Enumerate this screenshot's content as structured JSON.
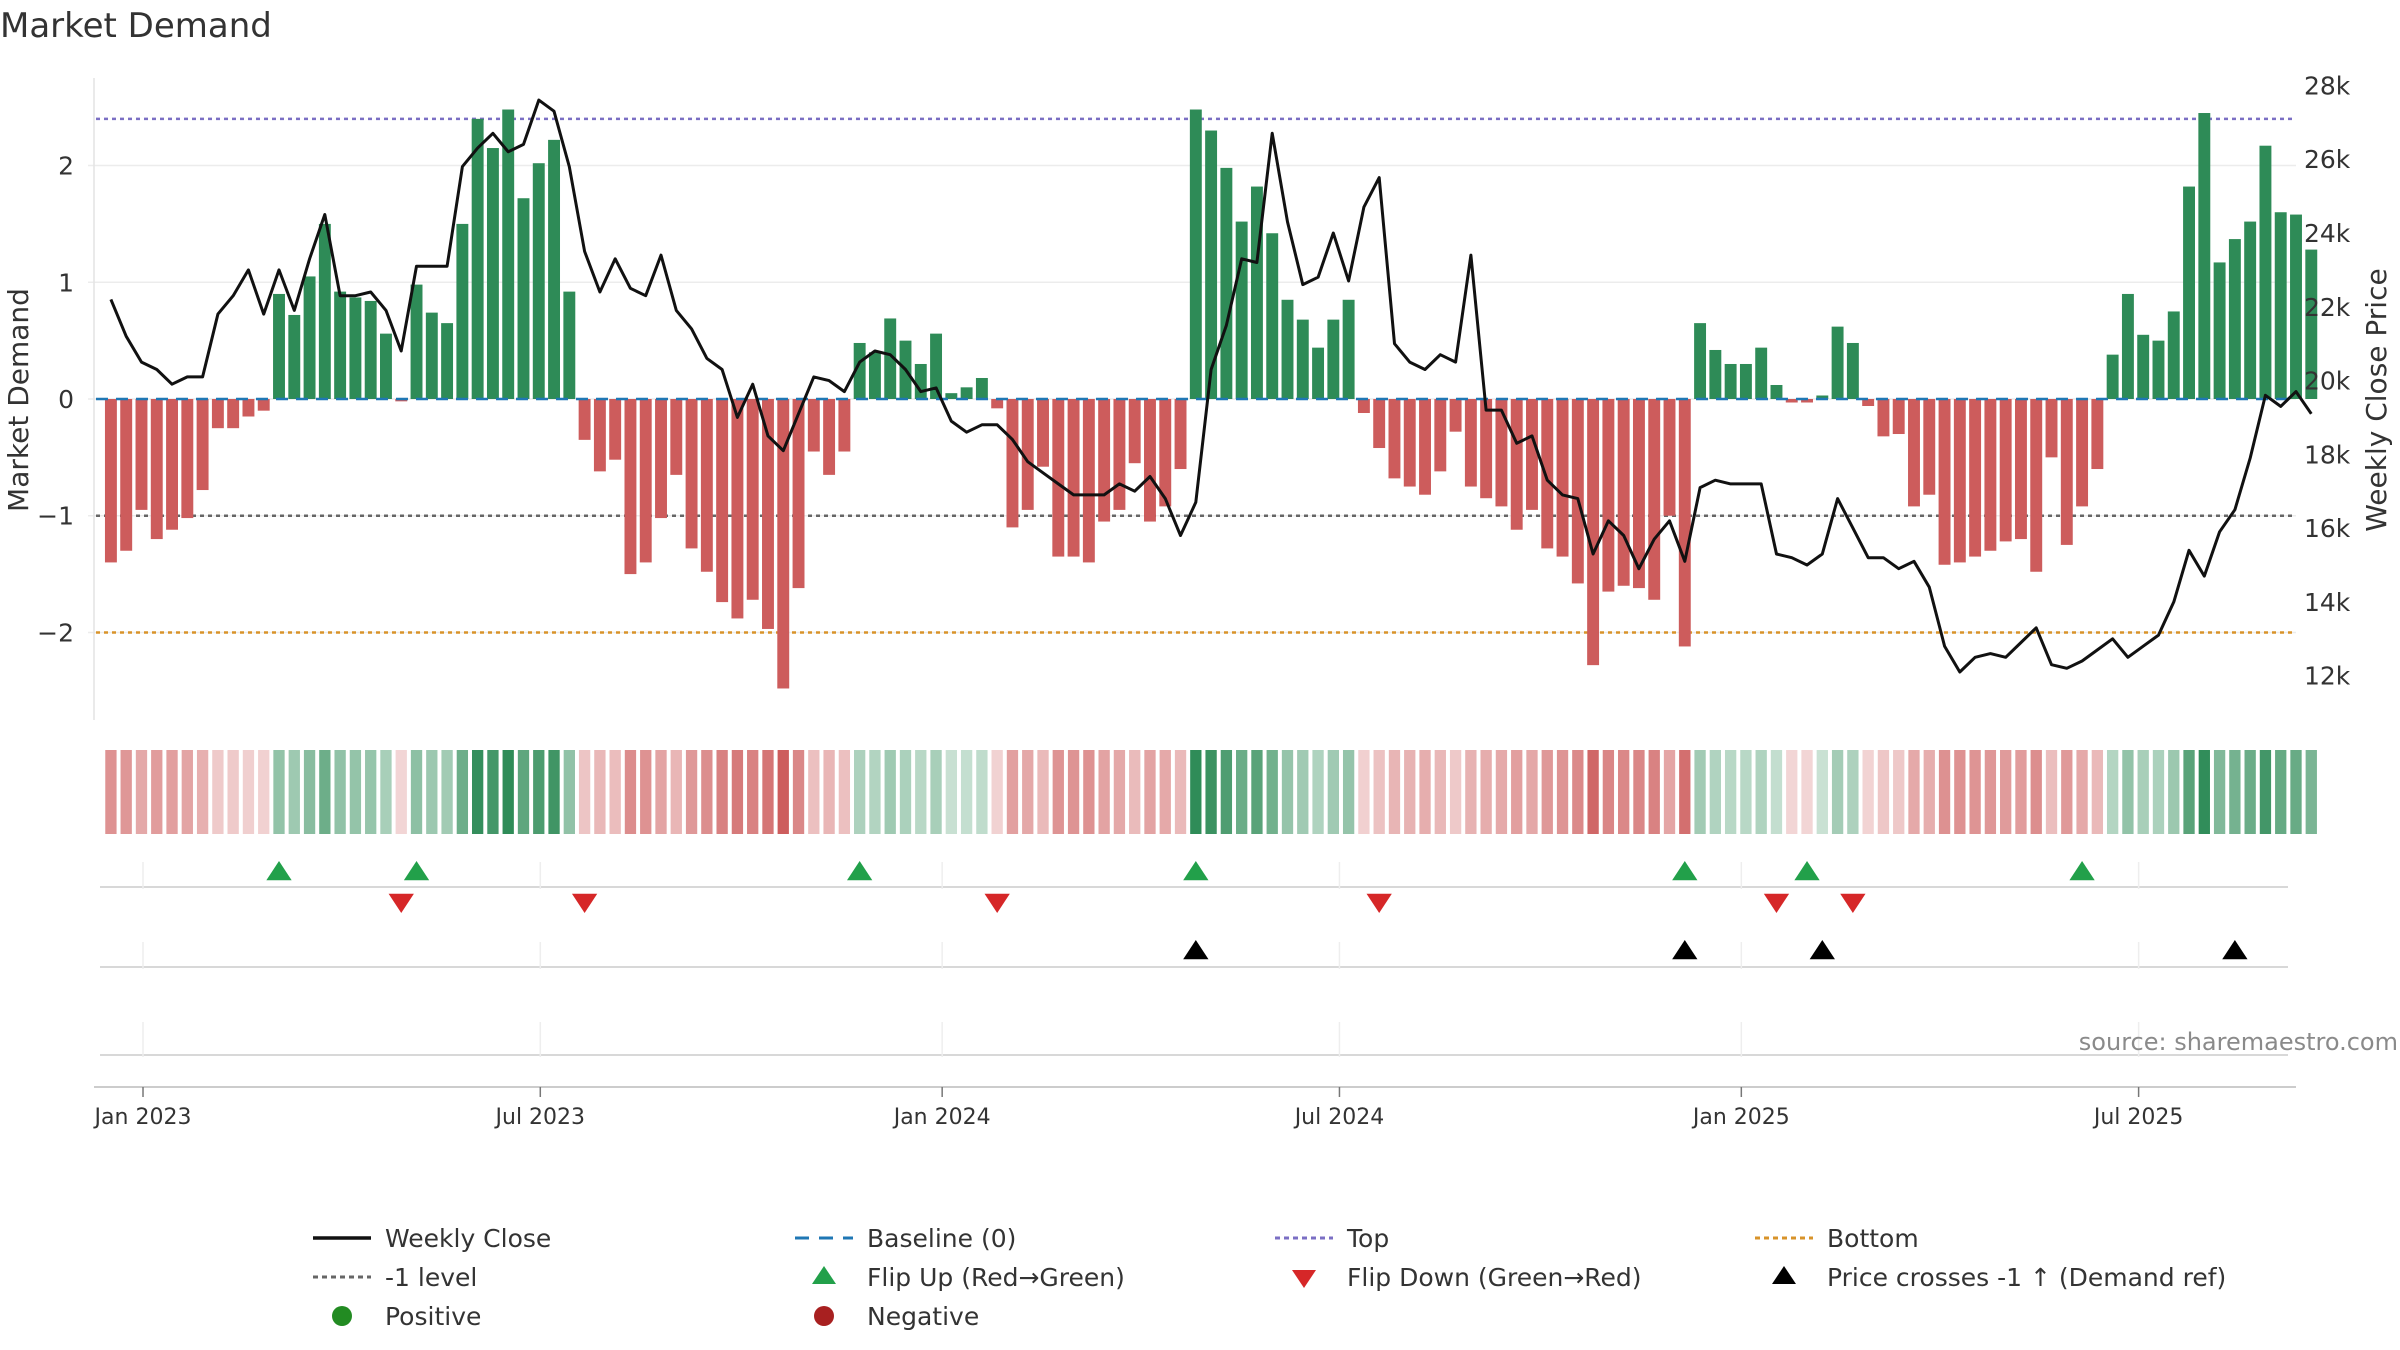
{
  "chart_data": {
    "type": "bar",
    "title": "Market Demand",
    "ylabel": "Market Demand",
    "y2label": "Weekly Close Price",
    "ylim": [
      -2.75,
      2.75
    ],
    "y2lim": [
      10800,
      28200
    ],
    "y_ticks": [
      {
        "value": 2,
        "label": "2"
      },
      {
        "value": 1,
        "label": "1"
      },
      {
        "value": 0,
        "label": "0"
      },
      {
        "value": -1,
        "label": "−1"
      },
      {
        "value": -2,
        "label": "−2"
      }
    ],
    "y2_ticks": [
      {
        "value": 28000,
        "label": "28k"
      },
      {
        "value": 26000,
        "label": "26k"
      },
      {
        "value": 24000,
        "label": "24k"
      },
      {
        "value": 22000,
        "label": "22k"
      },
      {
        "value": 20000,
        "label": "20k"
      },
      {
        "value": 18000,
        "label": "18k"
      },
      {
        "value": 16000,
        "label": "16k"
      },
      {
        "value": 14000,
        "label": "14k"
      },
      {
        "value": 12000,
        "label": "12k"
      }
    ],
    "x_range_weeks": [
      -1.5,
      143
    ],
    "x_ticks": [
      {
        "week": 2.1,
        "label": "Jan 2023"
      },
      {
        "week": 28.1,
        "label": "Jul 2023"
      },
      {
        "week": 54.4,
        "label": "Jan 2024"
      },
      {
        "week": 80.4,
        "label": "Jul 2024"
      },
      {
        "week": 106.7,
        "label": "Jan 2025"
      },
      {
        "week": 132.7,
        "label": "Jul 2025"
      }
    ],
    "reference_lines": [
      {
        "name": "Top",
        "value": 2.4,
        "color": "#7b6fc4"
      },
      {
        "name": "-1 level",
        "value": -1,
        "color": "#666666"
      },
      {
        "name": "Bottom",
        "value": -2,
        "color": "#d8932a"
      }
    ],
    "demand": [
      -1.4,
      -1.3,
      -0.95,
      -1.2,
      -1.12,
      -1.02,
      -0.78,
      -0.25,
      -0.25,
      -0.15,
      -0.1,
      0.9,
      0.72,
      1.05,
      1.5,
      0.92,
      0.87,
      0.84,
      0.56,
      -0.02,
      0.98,
      0.74,
      0.65,
      1.5,
      2.4,
      2.15,
      2.48,
      1.72,
      2.02,
      2.22,
      0.92,
      -0.35,
      -0.62,
      -0.52,
      -1.5,
      -1.4,
      -1.02,
      -0.65,
      -1.28,
      -1.48,
      -1.74,
      -1.88,
      -1.72,
      -1.97,
      -2.48,
      -1.62,
      -0.45,
      -0.65,
      -0.45,
      0.48,
      0.4,
      0.69,
      0.5,
      0.3,
      0.56,
      0.05,
      0.1,
      0.18,
      -0.08,
      -1.1,
      -0.95,
      -0.58,
      -1.35,
      -1.35,
      -1.4,
      -1.05,
      -0.95,
      -0.55,
      -1.05,
      -0.92,
      -0.6,
      2.48,
      2.3,
      1.98,
      1.52,
      1.82,
      1.42,
      0.85,
      0.68,
      0.44,
      0.68,
      0.85,
      -0.12,
      -0.42,
      -0.68,
      -0.75,
      -0.82,
      -0.62,
      -0.28,
      -0.75,
      -0.85,
      -0.92,
      -1.12,
      -0.95,
      -1.28,
      -1.35,
      -1.58,
      -2.28,
      -1.65,
      -1.6,
      -1.62,
      -1.72,
      -1.0,
      -2.12,
      0.65,
      0.42,
      0.3,
      0.3,
      0.44,
      0.12,
      -0.03,
      -0.03,
      0.03,
      0.62,
      0.48,
      -0.06,
      -0.32,
      -0.3,
      -0.92,
      -0.82,
      -1.42,
      -1.4,
      -1.35,
      -1.3,
      -1.22,
      -1.2,
      -1.48,
      -0.5,
      -1.25,
      -0.92,
      -0.6,
      0.38,
      0.9,
      0.55,
      0.5,
      0.75,
      1.82,
      2.45,
      1.17,
      1.37,
      1.52,
      2.17,
      1.6,
      1.58,
      1.28
    ],
    "series": [
      {
        "name": "Weekly Close",
        "values": [
          22200,
          21200,
          20500,
          20300,
          19900,
          20100,
          20100,
          21800,
          22300,
          23000,
          21800,
          23000,
          21900,
          23300,
          24500,
          22300,
          22300,
          22400,
          21900,
          20800,
          23100,
          23100,
          23100,
          25800,
          26300,
          26700,
          26200,
          26400,
          27600,
          27300,
          25800,
          23500,
          22400,
          23300,
          22500,
          22300,
          23400,
          21900,
          21400,
          20600,
          20300,
          19000,
          19900,
          18500,
          18100,
          19100,
          20100,
          20000,
          19700,
          20500,
          20800,
          20700,
          20300,
          19700,
          19800,
          18900,
          18600,
          18800,
          18800,
          18400,
          17800,
          17500,
          17200,
          16900,
          16900,
          16900,
          17200,
          17000,
          17400,
          16800,
          15800,
          16700,
          20300,
          21500,
          23300,
          23200,
          26700,
          24300,
          22600,
          22800,
          24000,
          22700,
          24700,
          25500,
          21000,
          20500,
          20300,
          20700,
          20500,
          23400,
          19200,
          19200,
          18300,
          18500,
          17300,
          16900,
          16800,
          15300,
          16200,
          15800,
          14900,
          15700,
          16200,
          15100,
          17100,
          17300,
          17200,
          17200,
          17200,
          15300,
          15200,
          15000,
          15300,
          16800,
          16000,
          15200,
          15200,
          14900,
          15100,
          14400,
          12800,
          12100,
          12500,
          12600,
          12500,
          12900,
          13300,
          12300,
          12200,
          12400,
          12700,
          13000,
          12500,
          12800,
          13100,
          14000,
          15400,
          14700,
          15900,
          16500,
          17900,
          19600,
          19300,
          19700,
          19100
        ]
      }
    ],
    "flip_up_weeks": [
      11,
      20,
      49,
      71,
      103,
      111,
      129
    ],
    "flip_down_weeks": [
      19,
      31,
      58,
      83,
      109,
      114
    ],
    "cross_weeks": [
      71,
      103,
      112,
      139
    ],
    "source": "source: sharemaestro.com",
    "legend": [
      {
        "key": "close",
        "label": "Weekly Close"
      },
      {
        "key": "baseline",
        "label": "Baseline (0)"
      },
      {
        "key": "top",
        "label": "Top"
      },
      {
        "key": "bottom",
        "label": "Bottom"
      },
      {
        "key": "minus1",
        "label": "-1 level"
      },
      {
        "key": "flipup",
        "label": "Flip Up (Red→Green)"
      },
      {
        "key": "flipdown",
        "label": "Flip Down (Green→Red)"
      },
      {
        "key": "cross",
        "label": "Price crosses -1 ↑ (Demand ref)"
      },
      {
        "key": "positive",
        "label": "Positive"
      },
      {
        "key": "negative",
        "label": "Negative"
      }
    ],
    "legend_placement": "bottom"
  },
  "colors": {
    "positive": "#2e8b57",
    "negative": "#cd5c5c",
    "line": "#111111",
    "baseline": "#1f77b4",
    "top": "#7b6fc4",
    "minus1": "#666666",
    "bottom": "#d8932a",
    "flipup": "#22a04a",
    "flipdown": "#d62728",
    "cross": "#000000",
    "dotpos": "#228b22",
    "dotneg": "#a82020"
  }
}
